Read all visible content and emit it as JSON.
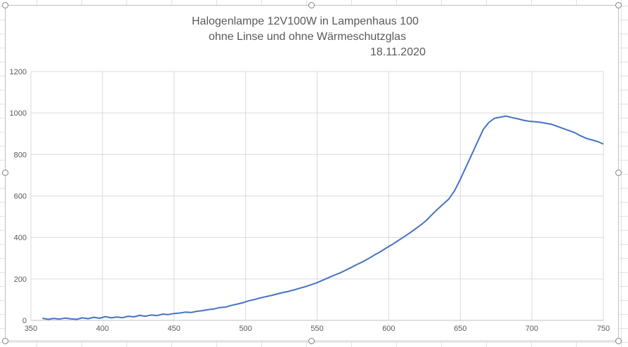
{
  "chart_data": {
    "type": "line",
    "title_lines": [
      "Halogenlampe 12V100W in Lampenhaus 100",
      "ohne Linse und ohne Wärmeschutzglas",
      "18.11.2020"
    ],
    "xlabel": "",
    "ylabel": "",
    "xlim": [
      350,
      750
    ],
    "ylim": [
      0,
      1200
    ],
    "x_ticks": [
      350,
      400,
      450,
      500,
      550,
      600,
      650,
      700,
      750
    ],
    "y_ticks": [
      0,
      200,
      400,
      600,
      800,
      1000,
      1200
    ],
    "grid": true,
    "legend": "none",
    "series": [
      {
        "color": "#4472c4",
        "x": [
          358,
          362,
          366,
          370,
          374,
          378,
          382,
          386,
          390,
          394,
          398,
          402,
          406,
          410,
          414,
          418,
          422,
          426,
          430,
          434,
          438,
          442,
          446,
          450,
          454,
          458,
          462,
          466,
          470,
          474,
          478,
          482,
          486,
          490,
          494,
          498,
          502,
          506,
          510,
          514,
          518,
          522,
          526,
          530,
          534,
          538,
          542,
          546,
          550,
          554,
          558,
          562,
          566,
          570,
          574,
          578,
          582,
          586,
          590,
          594,
          598,
          602,
          606,
          610,
          614,
          618,
          622,
          626,
          630,
          634,
          638,
          642,
          646,
          650,
          654,
          658,
          662,
          666,
          670,
          674,
          678,
          682,
          686,
          690,
          694,
          698,
          702,
          706,
          710,
          714,
          718,
          722,
          726,
          730,
          734,
          738,
          742,
          746,
          750
        ],
        "y": [
          10,
          5,
          9,
          6,
          11,
          7,
          5,
          12,
          8,
          15,
          10,
          18,
          12,
          16,
          13,
          20,
          17,
          24,
          20,
          26,
          23,
          30,
          28,
          33,
          35,
          40,
          38,
          44,
          47,
          52,
          55,
          62,
          64,
          72,
          78,
          85,
          94,
          100,
          108,
          114,
          120,
          127,
          134,
          140,
          147,
          155,
          163,
          172,
          182,
          194,
          206,
          218,
          229,
          242,
          256,
          270,
          283,
          298,
          315,
          330,
          348,
          364,
          382,
          400,
          418,
          438,
          458,
          480,
          508,
          535,
          560,
          585,
          625,
          680,
          740,
          800,
          860,
          920,
          955,
          975,
          980,
          985,
          978,
          972,
          965,
          960,
          958,
          955,
          950,
          945,
          935,
          925,
          915,
          905,
          890,
          878,
          870,
          862,
          850
        ]
      }
    ]
  }
}
